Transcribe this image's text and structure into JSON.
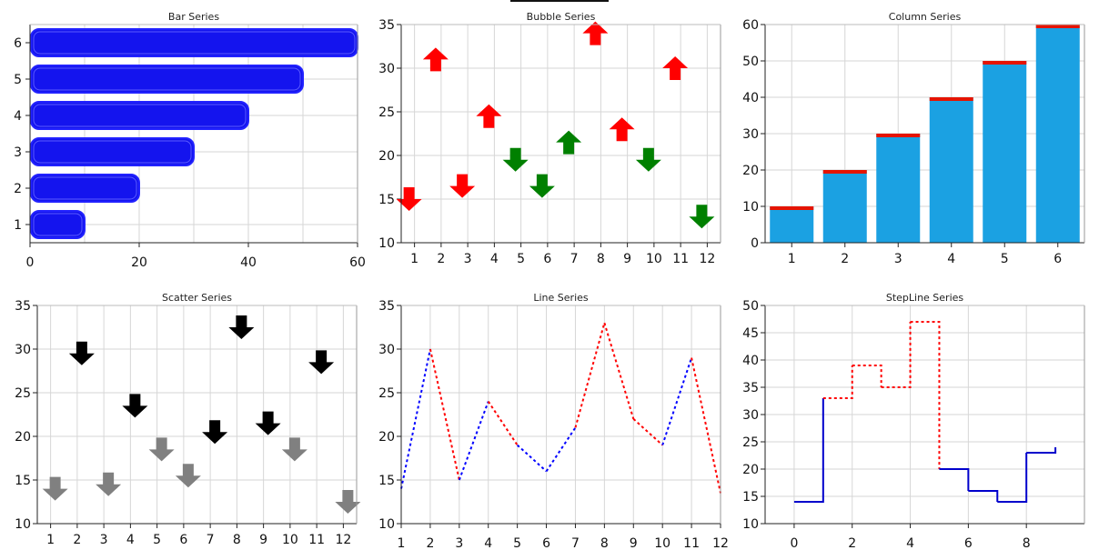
{
  "colors": {
    "bar_fill": "#1414ee",
    "bar_stroke": "#2222ff",
    "column_fill": "#1ba1e2",
    "column_cap": "#e51400",
    "up": "#ff0000",
    "down_bubble_red": "#ff0000",
    "down_bubble_green": "#008000",
    "up_green": "#008000",
    "scatter_black": "#000000",
    "scatter_gray": "#808080",
    "line_red": "#ff0000",
    "line_blue": "#0000ff",
    "step_blue": "#0000cc"
  },
  "chart_data": [
    {
      "id": "bar",
      "type": "bar",
      "orientation": "horizontal",
      "title": "Bar Series",
      "categories": [
        "1",
        "2",
        "3",
        "4",
        "5",
        "6"
      ],
      "values": [
        10,
        20,
        30,
        40,
        50,
        60
      ],
      "xlim": [
        0,
        60
      ],
      "xticks": [
        "0",
        "20",
        "40",
        "60"
      ]
    },
    {
      "id": "bubble",
      "type": "scatter",
      "marker": "arrow",
      "title": "Bubble Series",
      "ylim": [
        10,
        35
      ],
      "yticks": [
        "10",
        "15",
        "20",
        "25",
        "30",
        "35"
      ],
      "xticks": [
        "1",
        "2",
        "3",
        "4",
        "5",
        "6",
        "7",
        "8",
        "9",
        "10",
        "11",
        "12"
      ],
      "points": [
        {
          "x": 1,
          "y": 15,
          "dir": "down",
          "color": "red"
        },
        {
          "x": 2,
          "y": 31,
          "dir": "up",
          "color": "red"
        },
        {
          "x": 3,
          "y": 16.5,
          "dir": "down",
          "color": "red"
        },
        {
          "x": 4,
          "y": 24.5,
          "dir": "up",
          "color": "red"
        },
        {
          "x": 5,
          "y": 19.5,
          "dir": "down",
          "color": "green"
        },
        {
          "x": 6,
          "y": 16.5,
          "dir": "down",
          "color": "green"
        },
        {
          "x": 7,
          "y": 21.5,
          "dir": "up",
          "color": "green"
        },
        {
          "x": 8,
          "y": 34,
          "dir": "up",
          "color": "red"
        },
        {
          "x": 9,
          "y": 23,
          "dir": "up",
          "color": "red"
        },
        {
          "x": 10,
          "y": 19.5,
          "dir": "down",
          "color": "green"
        },
        {
          "x": 11,
          "y": 30,
          "dir": "up",
          "color": "red"
        },
        {
          "x": 12,
          "y": 13,
          "dir": "down",
          "color": "green"
        }
      ]
    },
    {
      "id": "column",
      "type": "bar",
      "orientation": "vertical",
      "title": "Column Series",
      "categories": [
        "1",
        "2",
        "3",
        "4",
        "5",
        "6"
      ],
      "values": [
        10,
        20,
        30,
        40,
        50,
        60
      ],
      "ylim": [
        0,
        60
      ],
      "yticks": [
        "0",
        "10",
        "20",
        "30",
        "40",
        "50",
        "60"
      ]
    },
    {
      "id": "scatter",
      "type": "scatter",
      "marker": "arrow",
      "title": "Scatter Series",
      "ylim": [
        10,
        35
      ],
      "yticks": [
        "10",
        "15",
        "20",
        "25",
        "30",
        "35"
      ],
      "xticks": [
        "1",
        "2",
        "3",
        "4",
        "5",
        "6",
        "7",
        "8",
        "9",
        "10",
        "11",
        "12"
      ],
      "points": [
        {
          "x": 1,
          "y": 14,
          "color": "gray"
        },
        {
          "x": 2,
          "y": 29.5,
          "color": "black"
        },
        {
          "x": 3,
          "y": 14.5,
          "color": "gray"
        },
        {
          "x": 4,
          "y": 23.5,
          "color": "black"
        },
        {
          "x": 5,
          "y": 18.5,
          "color": "gray"
        },
        {
          "x": 6,
          "y": 15.5,
          "color": "gray"
        },
        {
          "x": 7,
          "y": 20.5,
          "color": "black"
        },
        {
          "x": 8,
          "y": 32.5,
          "color": "black"
        },
        {
          "x": 9,
          "y": 21.5,
          "color": "black"
        },
        {
          "x": 10,
          "y": 18.5,
          "color": "gray"
        },
        {
          "x": 11,
          "y": 28.5,
          "color": "black"
        },
        {
          "x": 12,
          "y": 12.5,
          "color": "gray"
        }
      ]
    },
    {
      "id": "line",
      "type": "line",
      "style": "dotted",
      "title": "Line Series",
      "ylim": [
        10,
        35
      ],
      "xlim": [
        1,
        12
      ],
      "yticks": [
        "10",
        "15",
        "20",
        "25",
        "30",
        "35"
      ],
      "xticks": [
        "1",
        "2",
        "3",
        "4",
        "5",
        "6",
        "7",
        "8",
        "9",
        "10",
        "11",
        "12"
      ],
      "x": [
        1,
        2,
        3,
        4,
        5,
        6,
        7,
        8,
        9,
        10,
        11,
        12
      ],
      "y": [
        14,
        30,
        15,
        24,
        19,
        16,
        21,
        33,
        22,
        19,
        29,
        13.5
      ],
      "segment_colors": [
        "blue",
        "red",
        "blue",
        "red",
        "blue",
        "blue",
        "red",
        "red",
        "red",
        "blue",
        "red"
      ]
    },
    {
      "id": "stepline",
      "type": "line",
      "style": "step",
      "title": "StepLine Series",
      "ylim": [
        10,
        50
      ],
      "xlim": [
        -1,
        10
      ],
      "yticks": [
        "10",
        "15",
        "20",
        "25",
        "30",
        "35",
        "40",
        "45",
        "50"
      ],
      "xticks": [
        "0",
        "2",
        "4",
        "6",
        "8"
      ],
      "x": [
        0,
        1,
        2,
        3,
        4,
        5,
        6,
        7,
        8,
        9
      ],
      "y": [
        14,
        33,
        39,
        35,
        47,
        20,
        16,
        14,
        23,
        24
      ],
      "segment_colors": [
        "blue",
        "red",
        "red",
        "red",
        "red",
        "blue",
        "blue",
        "blue",
        "blue"
      ]
    }
  ]
}
